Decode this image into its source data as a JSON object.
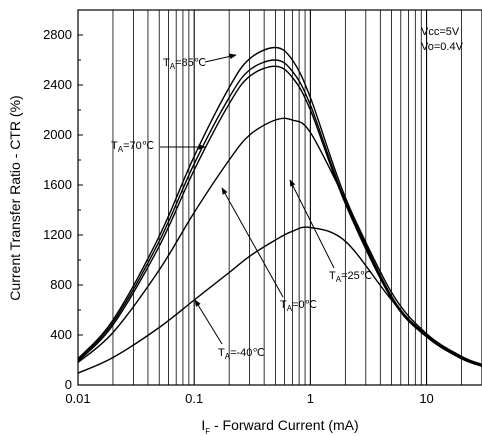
{
  "chart_data": {
    "type": "line",
    "title": "",
    "xlabel": "F - Forward Current (mA)",
    "xlabel_prefix": "I",
    "ylabel": "Current Transfer Ratio - CTR (%)",
    "x_scale": "log",
    "xlim": [
      0.01,
      30
    ],
    "ylim": [
      0,
      3000
    ],
    "x_ticks": [
      0.01,
      0.1,
      1,
      10
    ],
    "x_tick_labels": [
      "0.01",
      "0.1",
      "1",
      "10"
    ],
    "y_ticks": [
      0,
      400,
      800,
      1200,
      1600,
      2000,
      2400,
      2800
    ],
    "y_tick_labels": [
      "0",
      "400",
      "800",
      "1200",
      "1600",
      "2000",
      "2400",
      "2800"
    ],
    "grid": "vertical (log decades)",
    "conditions": [
      "Vcc=5V",
      "Vo=0.4V"
    ],
    "series": [
      {
        "name": "TA=25℃",
        "label_prefix": "T",
        "label_sub": "A",
        "label_rest": "=25℃",
        "x": [
          0.01,
          0.02,
          0.05,
          0.1,
          0.2,
          0.3,
          0.5,
          0.7,
          1,
          2,
          5,
          10,
          20,
          30
        ],
        "y": [
          210,
          520,
          1190,
          1830,
          2380,
          2610,
          2700,
          2600,
          2300,
          1500,
          710,
          400,
          220,
          160
        ]
      },
      {
        "name": "TA=70℃",
        "label_prefix": "T",
        "label_sub": "A",
        "label_rest": "=70℃",
        "x": [
          0.01,
          0.02,
          0.05,
          0.1,
          0.2,
          0.3,
          0.5,
          0.7,
          1,
          2,
          5,
          10,
          20,
          30
        ],
        "y": [
          200,
          500,
          1150,
          1770,
          2300,
          2520,
          2600,
          2510,
          2240,
          1470,
          700,
          390,
          215,
          155
        ]
      },
      {
        "name": "TA=85℃",
        "label_prefix": "T",
        "label_sub": "A",
        "label_rest": "=85℃",
        "x": [
          0.01,
          0.02,
          0.05,
          0.1,
          0.2,
          0.3,
          0.5,
          0.7,
          1,
          2,
          5,
          10,
          20,
          30
        ],
        "y": [
          190,
          480,
          1110,
          1720,
          2250,
          2470,
          2550,
          2460,
          2200,
          1450,
          690,
          385,
          210,
          150
        ]
      },
      {
        "name": "TA=0℃",
        "label_prefix": "T",
        "label_sub": "A",
        "label_rest": "=0℃",
        "x": [
          0.01,
          0.02,
          0.05,
          0.1,
          0.2,
          0.3,
          0.5,
          0.7,
          1,
          2,
          5,
          10,
          20,
          30
        ],
        "y": [
          180,
          420,
          920,
          1380,
          1800,
          2000,
          2120,
          2120,
          2020,
          1480,
          740,
          410,
          230,
          165
        ]
      },
      {
        "name": "TA=-40℃",
        "label_prefix": "T",
        "label_sub": "A",
        "label_rest": "=-40℃",
        "x": [
          0.01,
          0.02,
          0.05,
          0.1,
          0.2,
          0.3,
          0.5,
          0.7,
          1,
          2,
          5,
          10,
          20,
          30
        ],
        "y": [
          95,
          220,
          460,
          680,
          900,
          1030,
          1160,
          1230,
          1260,
          1150,
          680,
          390,
          220,
          160
        ]
      }
    ]
  }
}
